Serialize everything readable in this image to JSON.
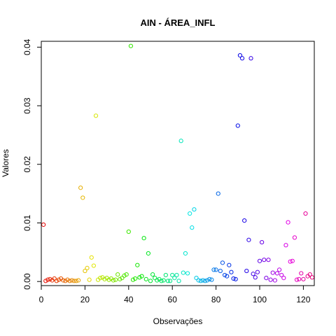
{
  "chart_data": {
    "type": "scatter",
    "title": "AIN - ÁREA_INFL",
    "xlabel": "Observações",
    "ylabel": "Valores",
    "xlim": [
      0,
      125
    ],
    "ylim": [
      -0.0007,
      0.041
    ],
    "xticks": [
      0,
      20,
      40,
      60,
      80,
      100,
      120
    ],
    "yticks": [
      0.0,
      0.01,
      0.02,
      0.03,
      0.04
    ],
    "ytick_labels": [
      "0.00",
      "0.01",
      "0.02",
      "0.03",
      "0.04"
    ],
    "grid": false,
    "legend": false,
    "color_scheme": "rainbow (hue by observation index: red → yellow → green → cyan → blue → magenta → red → yellow)",
    "points": [
      [
        1,
        0.0097
      ],
      [
        2,
        0.0001
      ],
      [
        3,
        0.0003
      ],
      [
        4,
        0.0004
      ],
      [
        5,
        0.0002
      ],
      [
        6,
        0.0005
      ],
      [
        7,
        0.0001
      ],
      [
        8,
        0.0003
      ],
      [
        9,
        0.0005
      ],
      [
        10,
        0.0002
      ],
      [
        11,
        0.0001
      ],
      [
        12,
        0.0003
      ],
      [
        13,
        0.0001
      ],
      [
        14,
        0.0002
      ],
      [
        15,
        0.0001
      ],
      [
        16,
        0.0001
      ],
      [
        17,
        0.0002
      ],
      [
        18,
        0.016
      ],
      [
        19,
        0.0143
      ],
      [
        20,
        0.0018
      ],
      [
        21,
        0.0023
      ],
      [
        22,
        0.0003
      ],
      [
        23,
        0.0041
      ],
      [
        24,
        0.0027
      ],
      [
        25,
        0.0283
      ],
      [
        26,
        0.0003
      ],
      [
        27,
        0.0006
      ],
      [
        28,
        0.0007
      ],
      [
        29,
        0.0004
      ],
      [
        30,
        0.0006
      ],
      [
        31,
        0.0003
      ],
      [
        32,
        0.0005
      ],
      [
        33,
        0.0002
      ],
      [
        34,
        0.0003
      ],
      [
        35,
        0.0012
      ],
      [
        36,
        0.0004
      ],
      [
        37,
        0.0006
      ],
      [
        38,
        0.001
      ],
      [
        39,
        0.0012
      ],
      [
        40,
        0.0085
      ],
      [
        41,
        0.0402
      ],
      [
        42,
        0.0003
      ],
      [
        43,
        0.0005
      ],
      [
        44,
        0.0028
      ],
      [
        45,
        0.0007
      ],
      [
        46,
        0.0009
      ],
      [
        47,
        0.0074
      ],
      [
        48,
        0.0004
      ],
      [
        49,
        0.0048
      ],
      [
        50,
        0.0001
      ],
      [
        51,
        0.0012
      ],
      [
        52,
        0.0006
      ],
      [
        53,
        0.0002
      ],
      [
        54,
        0.0004
      ],
      [
        55,
        0.0001
      ],
      [
        56,
        0.0002
      ],
      [
        57,
        0.0011
      ],
      [
        58,
        0.0001
      ],
      [
        59,
        0.0001
      ],
      [
        60,
        0.0011
      ],
      [
        61,
        0.0006
      ],
      [
        62,
        0.0011
      ],
      [
        63,
        0.0001
      ],
      [
        64,
        0.024
      ],
      [
        65,
        0.0015
      ],
      [
        66,
        0.0048
      ],
      [
        67,
        0.0014
      ],
      [
        68,
        0.0116
      ],
      [
        69,
        0.0092
      ],
      [
        70,
        0.0123
      ],
      [
        71,
        0.0006
      ],
      [
        72,
        0.0002
      ],
      [
        73,
        0.0001
      ],
      [
        74,
        0.0002
      ],
      [
        75,
        0.0001
      ],
      [
        76,
        0.0002
      ],
      [
        77,
        0.0004
      ],
      [
        78,
        0.0003
      ],
      [
        79,
        0.002
      ],
      [
        80,
        0.002
      ],
      [
        81,
        0.015
      ],
      [
        82,
        0.0018
      ],
      [
        83,
        0.0032
      ],
      [
        84,
        0.0011
      ],
      [
        85,
        0.0009
      ],
      [
        86,
        0.0028
      ],
      [
        87,
        0.0016
      ],
      [
        88,
        0.0005
      ],
      [
        89,
        0.0004
      ],
      [
        90,
        0.0266
      ],
      [
        91,
        0.0386
      ],
      [
        92,
        0.0381
      ],
      [
        93,
        0.0104
      ],
      [
        94,
        0.0018
      ],
      [
        95,
        0.0071
      ],
      [
        96,
        0.0381
      ],
      [
        97,
        0.0013
      ],
      [
        98,
        0.0007
      ],
      [
        99,
        0.0016
      ],
      [
        100,
        0.0035
      ],
      [
        101,
        0.0067
      ],
      [
        102,
        0.0037
      ],
      [
        103,
        0.0006
      ],
      [
        104,
        0.0037
      ],
      [
        105,
        0.0003
      ],
      [
        106,
        0.0015
      ],
      [
        107,
        0.0002
      ],
      [
        108,
        0.0014
      ],
      [
        109,
        0.002
      ],
      [
        110,
        0.0011
      ],
      [
        111,
        0.0006
      ],
      [
        112,
        0.0062
      ],
      [
        113,
        0.0101
      ],
      [
        114,
        0.0034
      ],
      [
        115,
        0.0035
      ],
      [
        116,
        0.0075
      ],
      [
        117,
        0.0003
      ],
      [
        118,
        0.0004
      ],
      [
        119,
        0.0014
      ],
      [
        120,
        0.0004
      ],
      [
        121,
        0.0116
      ],
      [
        122,
        0.0009
      ],
      [
        123,
        0.0012
      ],
      [
        124,
        0.0007
      ]
    ]
  }
}
